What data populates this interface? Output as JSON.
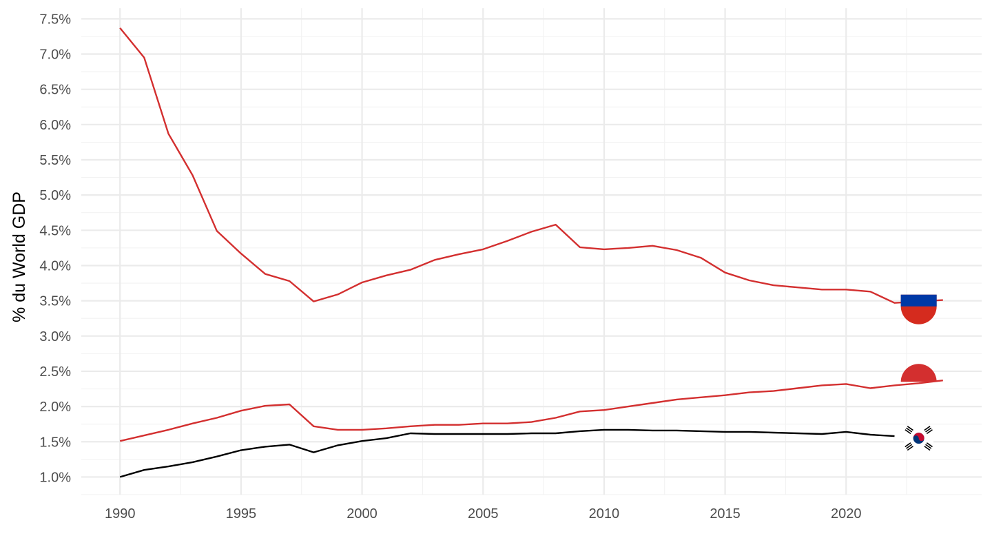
{
  "chart_data": {
    "type": "line",
    "title": "",
    "xlabel": "",
    "ylabel": "% du World GDP",
    "xlim": [
      1988.4,
      2025.6
    ],
    "ylim": [
      0.75,
      7.65
    ],
    "x_ticks": [
      1990,
      1995,
      2000,
      2005,
      2010,
      2015,
      2020
    ],
    "x_tick_labels": [
      "1990",
      "1995",
      "2000",
      "2005",
      "2010",
      "2015",
      "2020"
    ],
    "y_ticks": [
      1.0,
      1.5,
      2.0,
      2.5,
      3.0,
      3.5,
      4.0,
      4.5,
      5.0,
      5.5,
      6.0,
      6.5,
      7.0,
      7.5
    ],
    "y_tick_labels": [
      "1.0%",
      "1.5%",
      "2.0%",
      "2.5%",
      "3.0%",
      "3.5%",
      "4.0%",
      "4.5%",
      "5.0%",
      "5.5%",
      "6.0%",
      "6.5%",
      "7.0%",
      "7.5%"
    ],
    "grid": true,
    "legend": "none",
    "series": [
      {
        "color": "#d32f2f",
        "flag": "russia-flag-icon",
        "x": [
          1990,
          1991,
          1992,
          1993,
          1994,
          1995,
          1996,
          1997,
          1998,
          1999,
          2000,
          2001,
          2002,
          2003,
          2004,
          2005,
          2006,
          2007,
          2008,
          2009,
          2010,
          2011,
          2012,
          2013,
          2014,
          2015,
          2016,
          2017,
          2018,
          2019,
          2020,
          2021,
          2022,
          2023,
          2024
        ],
        "values": [
          7.37,
          6.95,
          5.87,
          5.28,
          4.49,
          4.17,
          3.88,
          3.78,
          3.49,
          3.59,
          3.76,
          3.86,
          3.94,
          4.08,
          4.16,
          4.23,
          4.35,
          4.48,
          4.58,
          4.26,
          4.23,
          4.25,
          4.28,
          4.22,
          4.11,
          3.9,
          3.79,
          3.72,
          3.69,
          3.66,
          3.66,
          3.63,
          3.47,
          3.49,
          3.51
        ]
      },
      {
        "color": "#d32f2f",
        "flag": "japan-flag-icon",
        "x": [
          1990,
          1991,
          1992,
          1993,
          1994,
          1995,
          1996,
          1997,
          1998,
          1999,
          2000,
          2001,
          2002,
          2003,
          2004,
          2005,
          2006,
          2007,
          2008,
          2009,
          2010,
          2011,
          2012,
          2013,
          2014,
          2015,
          2016,
          2017,
          2018,
          2019,
          2020,
          2021,
          2022,
          2023,
          2024
        ],
        "values": [
          1.51,
          1.59,
          1.67,
          1.76,
          1.84,
          1.94,
          2.01,
          2.03,
          1.72,
          1.67,
          1.67,
          1.69,
          1.72,
          1.74,
          1.74,
          1.76,
          1.76,
          1.78,
          1.84,
          1.93,
          1.95,
          2.0,
          2.05,
          2.1,
          2.13,
          2.16,
          2.2,
          2.22,
          2.26,
          2.3,
          2.32,
          2.26,
          2.3,
          2.33,
          2.37
        ]
      },
      {
        "color": "#000000",
        "flag": "south-korea-flag-icon",
        "x": [
          1990,
          1991,
          1992,
          1993,
          1994,
          1995,
          1996,
          1997,
          1998,
          1999,
          2000,
          2001,
          2002,
          2003,
          2004,
          2005,
          2006,
          2007,
          2008,
          2009,
          2010,
          2011,
          2012,
          2013,
          2014,
          2015,
          2016,
          2017,
          2018,
          2019,
          2020,
          2021,
          2022
        ],
        "values": [
          1.0,
          1.1,
          1.15,
          1.21,
          1.29,
          1.38,
          1.43,
          1.46,
          1.35,
          1.45,
          1.51,
          1.55,
          1.62,
          1.61,
          1.61,
          1.61,
          1.61,
          1.62,
          1.62,
          1.65,
          1.67,
          1.67,
          1.66,
          1.66,
          1.65,
          1.64,
          1.64,
          1.63,
          1.62,
          1.61,
          1.64,
          1.6,
          1.58
        ]
      }
    ],
    "flag_markers": [
      {
        "name": "russia-flag-icon",
        "x": 2023,
        "y": 3.45,
        "kind": "tricolor-half",
        "colors": [
          "#0039A6",
          "#D52B1E"
        ]
      },
      {
        "name": "japan-flag-icon",
        "x": 2023,
        "y": 2.35,
        "kind": "disc-top",
        "colors": [
          "#D32F2F"
        ]
      },
      {
        "name": "south-korea-flag-icon",
        "x": 2023,
        "y": 1.55,
        "kind": "taegeuk",
        "colors": [
          "#C60C30",
          "#003478",
          "#000000"
        ]
      }
    ]
  }
}
